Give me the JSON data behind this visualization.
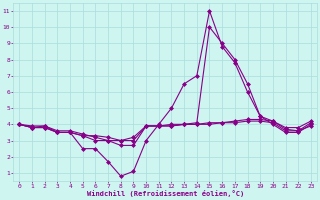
{
  "x": [
    0,
    1,
    2,
    3,
    4,
    5,
    6,
    7,
    8,
    9,
    10,
    11,
    12,
    13,
    14,
    15,
    16,
    17,
    18,
    19,
    20,
    21,
    22,
    23
  ],
  "series": [
    [
      4,
      3.8,
      3.9,
      3.5,
      3.5,
      2.5,
      2.5,
      1.7,
      0.8,
      1.1,
      3.0,
      4.0,
      5.0,
      6.5,
      7.0,
      11.0,
      8.8,
      7.8,
      6.0,
      4.5,
      4.0,
      3.5,
      3.5,
      4.0
    ],
    [
      4,
      3.8,
      3.8,
      3.5,
      3.5,
      3.3,
      3.3,
      3.2,
      3.0,
      3.0,
      3.9,
      3.9,
      3.9,
      4.0,
      4.0,
      4.0,
      4.1,
      4.1,
      4.2,
      4.2,
      4.1,
      3.6,
      3.6,
      3.9
    ],
    [
      4,
      3.8,
      3.8,
      3.5,
      3.5,
      3.3,
      3.0,
      3.0,
      2.7,
      2.7,
      3.9,
      3.9,
      3.9,
      4.0,
      4.0,
      4.1,
      4.1,
      4.2,
      4.3,
      4.3,
      4.2,
      3.7,
      3.6,
      4.1
    ],
    [
      4,
      3.9,
      3.9,
      3.6,
      3.6,
      3.4,
      3.2,
      3.0,
      3.0,
      3.2,
      3.9,
      3.9,
      4.0,
      4.0,
      4.1,
      10.0,
      9.0,
      8.0,
      6.5,
      4.5,
      4.2,
      3.8,
      3.8,
      4.2
    ]
  ],
  "line_color": "#880088",
  "marker": "D",
  "markersize": 2,
  "linewidth": 0.8,
  "xlabel": "Windchill (Refroidissement éolien,°C)",
  "ylabel_ticks": [
    1,
    2,
    3,
    4,
    5,
    6,
    7,
    8,
    9,
    10,
    11
  ],
  "xlabel_ticks": [
    0,
    1,
    2,
    3,
    4,
    5,
    6,
    7,
    8,
    9,
    10,
    11,
    12,
    13,
    14,
    15,
    16,
    17,
    18,
    19,
    20,
    21,
    22,
    23
  ],
  "xlim": [
    -0.5,
    23.5
  ],
  "ylim": [
    0.5,
    11.5
  ],
  "bg_color": "#cef5f0",
  "grid_color": "#aadddd",
  "text_color": "#880088",
  "tick_fontsize": 4.5,
  "xlabel_fontsize": 5.0
}
